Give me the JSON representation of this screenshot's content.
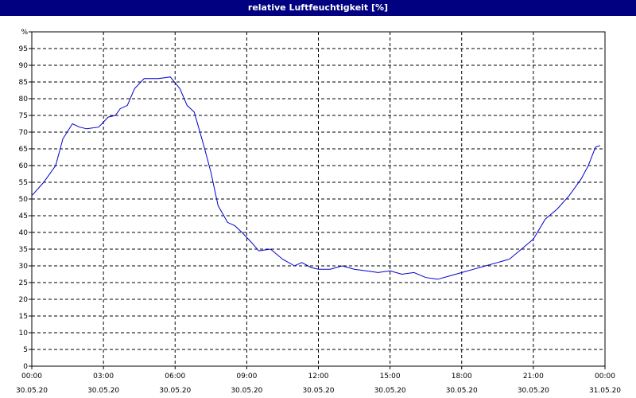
{
  "window": {
    "title": "relative Luftfeuchtigkeit [%]"
  },
  "colors": {
    "title_bar": "#000080",
    "line": "#0000cc",
    "grid": "#000000",
    "axis": "#000000"
  },
  "chart_data": {
    "type": "line",
    "title": "relative Luftfeuchtigkeit [%]",
    "xlabel": "",
    "ylabel": "%",
    "xlim": [
      0,
      24
    ],
    "ylim": [
      0,
      100
    ],
    "grid": true,
    "yticks": [
      "0",
      "5",
      "10",
      "15",
      "20",
      "25",
      "30",
      "35",
      "40",
      "45",
      "50",
      "55",
      "60",
      "65",
      "70",
      "75",
      "80",
      "85",
      "90",
      "95",
      "%"
    ],
    "xticks": [
      {
        "time": "00:00",
        "date": "30.05.20"
      },
      {
        "time": "03:00",
        "date": "30.05.20"
      },
      {
        "time": "06:00",
        "date": "30.05.20"
      },
      {
        "time": "09:00",
        "date": "30.05.20"
      },
      {
        "time": "12:00",
        "date": "30.05.20"
      },
      {
        "time": "15:00",
        "date": "30.05.20"
      },
      {
        "time": "18:00",
        "date": "30.05.20"
      },
      {
        "time": "21:00",
        "date": "30.05.20"
      },
      {
        "time": "00:00",
        "date": "31.05.20"
      }
    ],
    "series": [
      {
        "x": [
          0,
          0.5,
          1.0,
          1.3,
          1.7,
          2.0,
          2.3,
          2.8,
          3.2,
          3.5,
          3.7,
          4.0,
          4.3,
          4.7,
          5.0,
          5.3,
          5.8,
          6.2,
          6.5,
          6.8,
          7.2,
          7.5,
          7.8,
          8.2,
          8.5,
          8.8,
          9.2,
          9.5,
          10.0,
          10.5,
          11.0,
          11.3,
          11.7,
          12.0,
          12.5,
          13.0,
          13.5,
          14.0,
          14.5,
          15.0,
          15.5,
          16.0,
          16.5,
          17.0,
          17.5,
          18.0,
          18.5,
          19.0,
          19.5,
          20.0,
          20.5,
          21.0,
          21.5,
          22.0,
          22.5,
          23.0,
          23.3,
          23.6,
          23.8
        ],
        "values": [
          51,
          55,
          60,
          68,
          72.5,
          71.5,
          71,
          71.5,
          74.5,
          75,
          77,
          78,
          83,
          86,
          86,
          86,
          86.5,
          83,
          78,
          76,
          66,
          58,
          48,
          43,
          42,
          40,
          37,
          34.5,
          35,
          32,
          30,
          31,
          29.5,
          29,
          29,
          30,
          29,
          28.5,
          28,
          28.5,
          27.5,
          28,
          26.5,
          26,
          27,
          28,
          29,
          30,
          31,
          32,
          35,
          38,
          44,
          47,
          51,
          56,
          60,
          65.5,
          66
        ]
      }
    ]
  }
}
